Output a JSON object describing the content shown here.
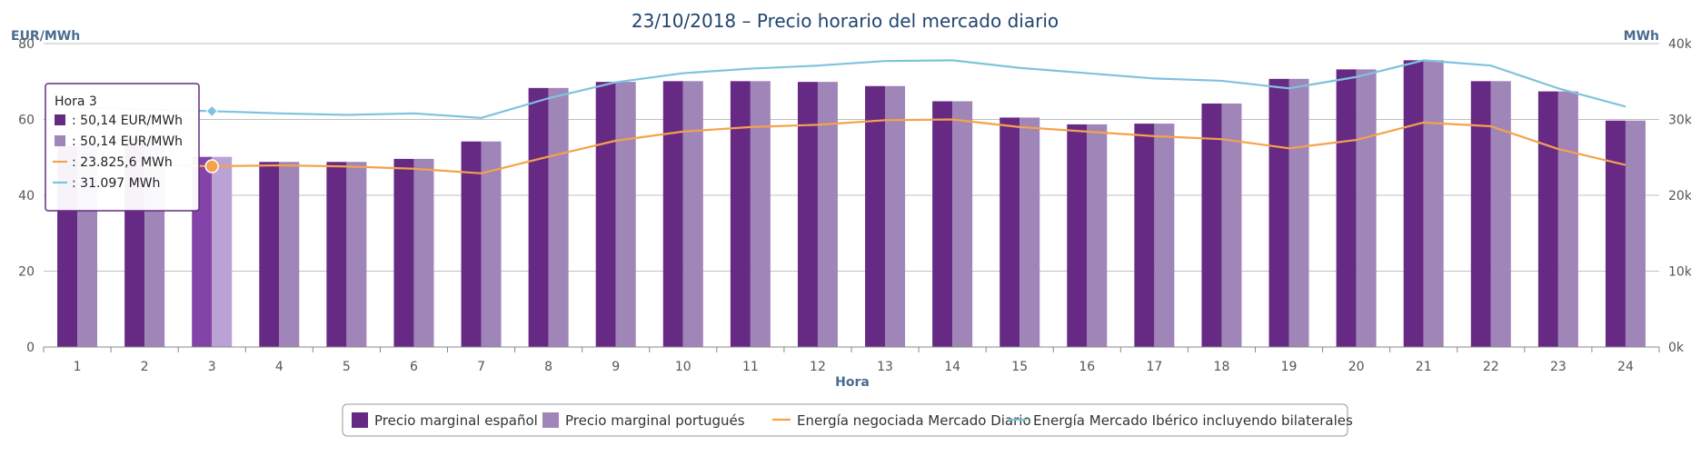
{
  "chart_data": {
    "type": "bar",
    "title": "23/10/2018 – Precio horario del mercado diario",
    "xlabel": "Hora",
    "ylabel_left": "EUR/MWh",
    "ylabel_right": "MWh",
    "categories": [
      "1",
      "2",
      "3",
      "4",
      "5",
      "6",
      "7",
      "8",
      "9",
      "10",
      "11",
      "12",
      "13",
      "14",
      "15",
      "16",
      "17",
      "18",
      "19",
      "20",
      "21",
      "22",
      "23",
      "24"
    ],
    "ylim_left": [
      0,
      80
    ],
    "yticks_left": [
      "0",
      "20",
      "40",
      "60",
      "80"
    ],
    "ylim_right": [
      0,
      40000
    ],
    "yticks_right": [
      "0k",
      "10k",
      "20k",
      "30k",
      "40k"
    ],
    "grid": true,
    "legend_position": "bottom-center",
    "series": [
      {
        "name": "Precio marginal español",
        "type": "bar",
        "axis": "left",
        "color": "#662a84",
        "values": [
          53.0,
          55.0,
          50.14,
          48.8,
          48.8,
          49.6,
          54.2,
          68.3,
          69.9,
          70.1,
          70.1,
          69.9,
          68.8,
          64.8,
          60.5,
          58.7,
          58.9,
          64.2,
          70.7,
          73.2,
          75.6,
          70.1,
          67.4,
          59.7
        ]
      },
      {
        "name": "Precio marginal portugués",
        "type": "bar",
        "axis": "left",
        "color": "#a085b8",
        "values": [
          53.0,
          55.0,
          50.14,
          48.8,
          48.8,
          49.6,
          54.2,
          68.3,
          69.9,
          70.1,
          70.1,
          69.9,
          68.8,
          64.8,
          60.5,
          58.7,
          58.9,
          64.2,
          70.7,
          73.2,
          75.6,
          70.1,
          67.4,
          59.7
        ]
      },
      {
        "name": "Energía negociada Mercado Diario",
        "type": "line",
        "axis": "right",
        "color": "#f5a24b",
        "values": [
          24300,
          24100,
          23825.6,
          23950,
          23800,
          23500,
          22900,
          25100,
          27200,
          28400,
          29000,
          29300,
          29900,
          30000,
          29000,
          28400,
          27800,
          27400,
          26200,
          27300,
          29600,
          29100,
          26100,
          24000
        ]
      },
      {
        "name": "Energía Mercado Ibérico incluyendo bilaterales",
        "type": "line",
        "axis": "right",
        "color": "#7ec3dd",
        "values": [
          31600,
          31300,
          31097,
          30800,
          30600,
          30800,
          30200,
          32800,
          34900,
          36100,
          36700,
          37100,
          37700,
          37800,
          36800,
          36100,
          35400,
          35100,
          34100,
          35600,
          37800,
          37100,
          34100,
          31700
        ]
      }
    ],
    "tooltip": {
      "title": "Hora 3",
      "rows": [
        ": 50,14 EUR/MWh",
        ": 50,14 EUR/MWh",
        ": 23.825,6 MWh",
        ": 31.097 MWh"
      ]
    }
  }
}
